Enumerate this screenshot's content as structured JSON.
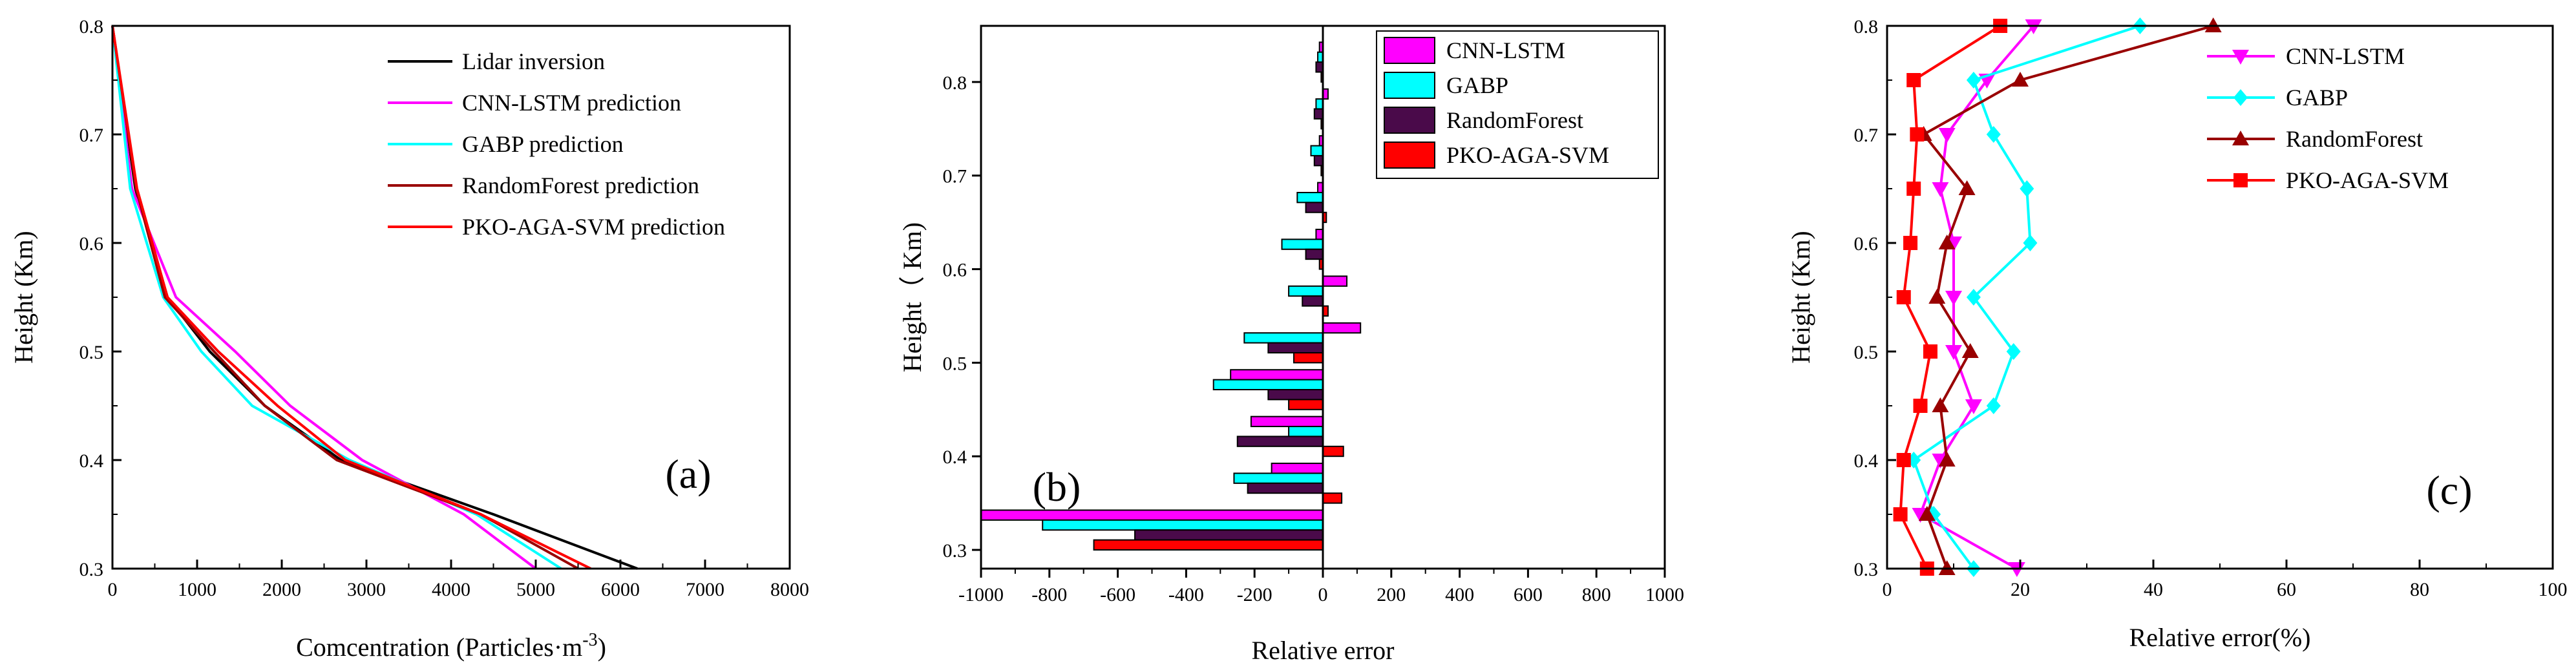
{
  "chart_data": [
    {
      "type": "line",
      "panel_label": "(a)",
      "xlabel_main": "Comcentration (Particles·m",
      "xlabel_sup": "-3",
      "xlabel_end": ")",
      "ylabel": "Height (Km)",
      "xlim": [
        0,
        8000
      ],
      "ylim": [
        0.3,
        0.8
      ],
      "xticks": [
        0,
        1000,
        2000,
        3000,
        4000,
        5000,
        6000,
        7000,
        8000
      ],
      "yticks": [
        0.3,
        0.4,
        0.5,
        0.6,
        0.7,
        0.8
      ],
      "legend_position": "top-right",
      "series": [
        {
          "name": "Lidar inversion",
          "color": "#000000",
          "x": [
            6200,
            4500,
            2700,
            1800,
            1150,
            650,
            270,
            0
          ],
          "y": [
            0.3,
            0.35,
            0.4,
            0.45,
            0.5,
            0.55,
            0.65,
            0.8
          ]
        },
        {
          "name": "CNN-LSTM prediction",
          "color": "#ff00ff",
          "x": [
            5000,
            4150,
            2950,
            2100,
            1450,
            750,
            230,
            0
          ],
          "y": [
            0.3,
            0.35,
            0.4,
            0.45,
            0.5,
            0.55,
            0.65,
            0.8
          ]
        },
        {
          "name": "GABP prediction",
          "color": "#00ffff",
          "x": [
            5300,
            4300,
            2800,
            1650,
            1050,
            600,
            210,
            0
          ],
          "y": [
            0.3,
            0.35,
            0.4,
            0.45,
            0.5,
            0.55,
            0.65,
            0.8
          ]
        },
        {
          "name": "RandomForest prediction",
          "color": "#990000",
          "x": [
            5500,
            4350,
            2650,
            1800,
            1200,
            620,
            280,
            0
          ],
          "y": [
            0.3,
            0.35,
            0.4,
            0.45,
            0.5,
            0.55,
            0.65,
            0.8
          ]
        },
        {
          "name": "PKO-AGA-SVM prediction",
          "color": "#ff0000",
          "x": [
            5650,
            4350,
            2750,
            1950,
            1250,
            650,
            290,
            0
          ],
          "y": [
            0.3,
            0.35,
            0.4,
            0.45,
            0.5,
            0.55,
            0.65,
            0.8
          ]
        }
      ]
    },
    {
      "type": "bar",
      "orientation": "horizontal",
      "panel_label": "(b)",
      "xlabel": "Relative error",
      "ylabel": "Height（ Km)",
      "xlim": [
        -1000,
        1000
      ],
      "ylim": [
        0.28,
        0.86
      ],
      "xticks": [
        -1000,
        -800,
        -600,
        -400,
        -200,
        0,
        200,
        400,
        600,
        800,
        1000
      ],
      "yticks": [
        0.3,
        0.4,
        0.5,
        0.6,
        0.7,
        0.8
      ],
      "legend_position": "top-right",
      "categories": [
        0.3,
        0.35,
        0.4,
        0.45,
        0.5,
        0.55,
        0.6,
        0.65,
        0.7,
        0.75,
        0.8
      ],
      "series": [
        {
          "name": "CNN-LSTM",
          "color": "#ff00ff",
          "values": [
            -1000,
            -150,
            -210,
            -270,
            110,
            70,
            -20,
            -15,
            -10,
            15,
            -10
          ]
        },
        {
          "name": "GABP",
          "color": "#00ffff",
          "values": [
            -820,
            -260,
            -100,
            -320,
            -230,
            -100,
            -120,
            -75,
            -35,
            -20,
            -15
          ]
        },
        {
          "name": "RandomForest",
          "color": "#4a0a4a",
          "values": [
            -550,
            -220,
            -250,
            -160,
            -160,
            -60,
            -50,
            -50,
            -25,
            -25,
            -20
          ]
        },
        {
          "name": "PKO-AGA-SVM",
          "color": "#ff0000",
          "values": [
            -670,
            55,
            60,
            -100,
            -85,
            15,
            -10,
            10,
            -5,
            -5,
            -5
          ]
        }
      ]
    },
    {
      "type": "line",
      "panel_label": "(c)",
      "xlabel": "Relative error(%)",
      "ylabel": "Height (Km)",
      "xlim": [
        0,
        100
      ],
      "ylim": [
        0.3,
        0.8
      ],
      "xticks": [
        0,
        20,
        40,
        60,
        80,
        100
      ],
      "yticks": [
        0.3,
        0.4,
        0.5,
        0.6,
        0.7,
        0.8
      ],
      "legend_position": "top-right",
      "series": [
        {
          "name": "CNN-LSTM",
          "color": "#ff00ff",
          "marker": "triangle-down",
          "x": [
            19.5,
            5,
            8,
            13,
            10,
            10,
            10,
            8,
            9,
            15,
            22
          ],
          "y": [
            0.3,
            0.35,
            0.4,
            0.45,
            0.5,
            0.55,
            0.6,
            0.65,
            0.7,
            0.75,
            0.8
          ]
        },
        {
          "name": "GABP",
          "color": "#00ffff",
          "marker": "diamond",
          "x": [
            13,
            7,
            4,
            16,
            19,
            13,
            21.5,
            21,
            16,
            13,
            38
          ],
          "y": [
            0.3,
            0.35,
            0.4,
            0.45,
            0.5,
            0.55,
            0.6,
            0.65,
            0.7,
            0.75,
            0.8
          ]
        },
        {
          "name": "RandomForest",
          "color": "#990000",
          "marker": "triangle-up",
          "x": [
            9,
            6,
            9,
            8,
            12.5,
            7.5,
            9,
            12,
            5.5,
            20,
            49
          ],
          "y": [
            0.3,
            0.35,
            0.4,
            0.45,
            0.5,
            0.55,
            0.6,
            0.65,
            0.7,
            0.75,
            0.8
          ]
        },
        {
          "name": "PKO-AGA-SVM",
          "color": "#ff0000",
          "marker": "square",
          "x": [
            6,
            2,
            2.5,
            5,
            6.5,
            2.5,
            3.5,
            4,
            4.5,
            4,
            17
          ],
          "y": [
            0.3,
            0.35,
            0.4,
            0.45,
            0.5,
            0.55,
            0.6,
            0.65,
            0.7,
            0.75,
            0.8
          ]
        }
      ]
    }
  ]
}
